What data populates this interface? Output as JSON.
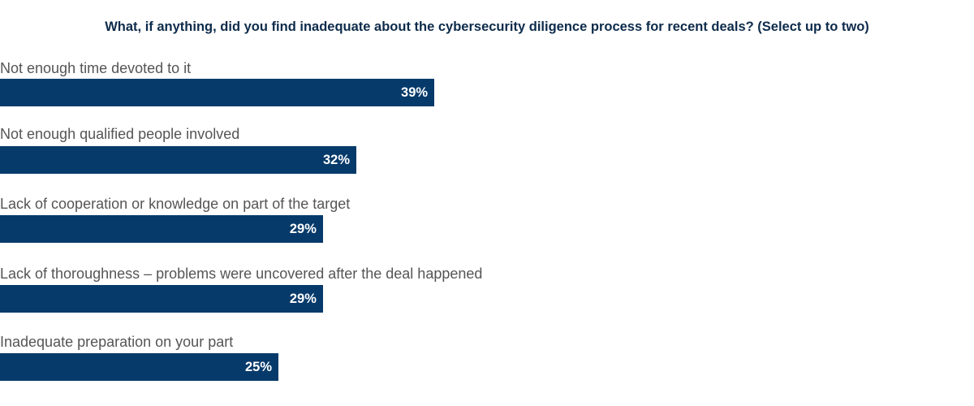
{
  "chart_data": {
    "type": "bar",
    "orientation": "horizontal",
    "title": "What, if anything, did you find inadequate about the cybersecurity diligence process for recent deals? (Select up to two)",
    "categories": [
      "Not enough time devoted to it",
      "Not enough qualified people involved",
      "Lack of cooperation or knowledge on part of the target",
      "Lack of thoroughness – problems were uncovered after the deal happened",
      "Inadequate preparation on your part"
    ],
    "values": [
      39,
      32,
      29,
      29,
      25
    ],
    "value_labels": [
      "39%",
      "32%",
      "29%",
      "29%",
      "25%"
    ],
    "unit": "%",
    "grid": false,
    "bar_color": "#063a6a"
  }
}
